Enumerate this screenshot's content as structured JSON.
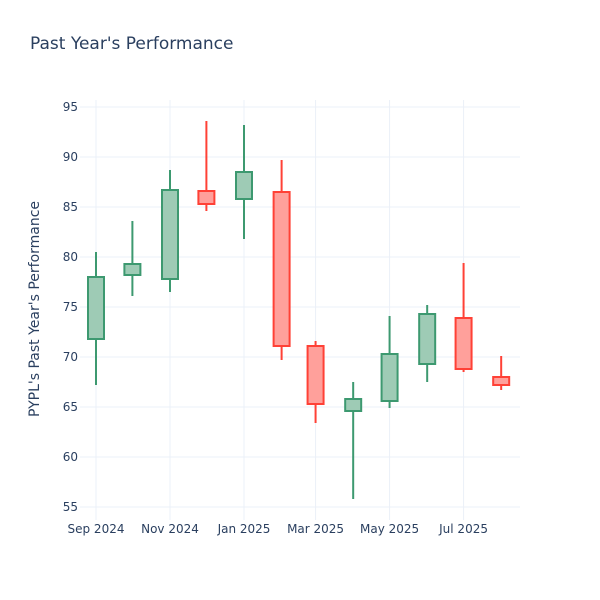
{
  "chart_data": {
    "type": "candlestick",
    "title": "Past Year's Performance",
    "xlabel": "",
    "ylabel": "PYPL's Past Year's Performance",
    "ylim": [
      54,
      96
    ],
    "yticks": [
      55,
      60,
      65,
      70,
      75,
      80,
      85,
      90,
      95
    ],
    "xticks": [
      {
        "date": "2024-09-01",
        "label": "Sep 2024"
      },
      {
        "date": "2024-11-01",
        "label": "Nov 2024"
      },
      {
        "date": "2025-01-01",
        "label": "Jan 2025"
      },
      {
        "date": "2025-03-01",
        "label": "Mar 2025"
      },
      {
        "date": "2025-05-01",
        "label": "May 2025"
      },
      {
        "date": "2025-07-01",
        "label": "Jul 2025"
      }
    ],
    "grid": true,
    "colors": {
      "increasing": "#3d9970",
      "increasing_fill": "#9ecbb5",
      "decreasing": "#ff4136",
      "decreasing_fill": "#ffa09b",
      "grid": "#ebf0f8"
    },
    "candles": [
      {
        "date": "2024-09-01",
        "open": 71.8,
        "high": 80.5,
        "low": 67.2,
        "close": 78.0
      },
      {
        "date": "2024-10-01",
        "open": 78.2,
        "high": 83.6,
        "low": 76.1,
        "close": 79.3
      },
      {
        "date": "2024-11-01",
        "open": 77.8,
        "high": 88.7,
        "low": 76.5,
        "close": 86.7
      },
      {
        "date": "2024-12-01",
        "open": 86.6,
        "high": 93.6,
        "low": 84.6,
        "close": 85.3
      },
      {
        "date": "2025-01-01",
        "open": 85.8,
        "high": 93.2,
        "low": 81.8,
        "close": 88.5
      },
      {
        "date": "2025-02-01",
        "open": 86.5,
        "high": 89.7,
        "low": 69.7,
        "close": 71.1
      },
      {
        "date": "2025-03-01",
        "open": 71.1,
        "high": 71.6,
        "low": 63.4,
        "close": 65.3
      },
      {
        "date": "2025-04-01",
        "open": 64.6,
        "high": 67.5,
        "low": 55.8,
        "close": 65.8
      },
      {
        "date": "2025-05-01",
        "open": 65.6,
        "high": 74.1,
        "low": 64.9,
        "close": 70.3
      },
      {
        "date": "2025-06-01",
        "open": 69.3,
        "high": 75.2,
        "low": 67.5,
        "close": 74.3
      },
      {
        "date": "2025-07-01",
        "open": 73.9,
        "high": 79.4,
        "low": 68.5,
        "close": 68.8
      },
      {
        "date": "2025-08-01",
        "open": 68.0,
        "high": 70.1,
        "low": 66.7,
        "close": 67.2
      }
    ]
  }
}
